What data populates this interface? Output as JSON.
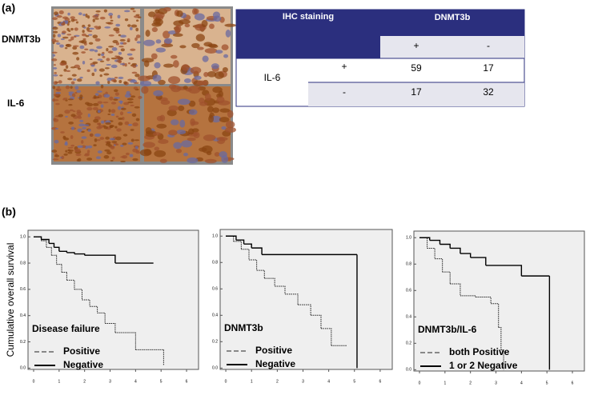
{
  "figure": {
    "panel_a": "(a)",
    "panel_b": "(b)",
    "image_labels": [
      "DNMT3b",
      "IL-6"
    ]
  },
  "table": {
    "corner": "IHC staining",
    "column_group": "DNMT3b",
    "columns": [
      "+",
      "-"
    ],
    "row_group": "IL-6",
    "rows": [
      [
        "+",
        "59",
        "17"
      ],
      [
        "-",
        "17",
        "32"
      ]
    ]
  },
  "chart_data": [
    {
      "type": "line",
      "ylabel": "Cumulative overall survival",
      "annotation": "Disease failure",
      "xlim": [
        -0.22,
        6.47
      ],
      "ylim": [
        -0.01,
        1.05
      ],
      "xticks": [
        0,
        1,
        2,
        3,
        4,
        5,
        6
      ],
      "yticks": [
        {
          "value": 0,
          "label": "0.0"
        },
        {
          "value": 0.2,
          "label": "0.2"
        },
        {
          "value": 0.4,
          "label": "0.4"
        },
        {
          "value": 0.6,
          "label": "0.6"
        },
        {
          "value": 0.8,
          "label": "0.8"
        },
        {
          "value": 1,
          "label": "1.0"
        }
      ],
      "series": [
        {
          "name": "Positive",
          "color": "#888888",
          "line_color": "#222222",
          "dash": true,
          "x": [
            0,
            0.3,
            0.5,
            0.7,
            0.9,
            1.1,
            1.3,
            1.6,
            1.9,
            2.2,
            2.5,
            2.8,
            3.2,
            3.6,
            4.0,
            5.1
          ],
          "values": [
            1,
            0.97,
            0.92,
            0.86,
            0.79,
            0.73,
            0.67,
            0.6,
            0.52,
            0.47,
            0.42,
            0.34,
            0.27,
            0.27,
            0.14,
            0.02
          ]
        },
        {
          "name": "Negative",
          "color": "#000000",
          "line_color": "#000000",
          "dash": false,
          "x": [
            0,
            0.3,
            0.6,
            0.8,
            1.0,
            1.3,
            1.6,
            2.0,
            3.2,
            4.7
          ],
          "values": [
            1,
            0.98,
            0.95,
            0.92,
            0.89,
            0.88,
            0.87,
            0.86,
            0.8,
            0.8
          ]
        }
      ]
    },
    {
      "type": "line",
      "annotation": "DNMT3b",
      "xlim": [
        -0.22,
        6.47
      ],
      "ylim": [
        -0.01,
        1.05
      ],
      "xticks": [
        0,
        1,
        2,
        3,
        4,
        5,
        6
      ],
      "yticks": [
        {
          "value": 0,
          "label": "0.0"
        },
        {
          "value": 0.2,
          "label": "0.2"
        },
        {
          "value": 0.4,
          "label": "0.4"
        },
        {
          "value": 0.6,
          "label": "0.6"
        },
        {
          "value": 0.8,
          "label": "0.8"
        },
        {
          "value": 1,
          "label": "1.0"
        }
      ],
      "series": [
        {
          "name": "Positive",
          "color": "#888888",
          "line_color": "#222222",
          "dash": true,
          "x": [
            0,
            0.3,
            0.6,
            0.9,
            1.2,
            1.5,
            1.9,
            2.3,
            2.8,
            3.3,
            3.7,
            4.1,
            4.7
          ],
          "values": [
            1,
            0.96,
            0.9,
            0.82,
            0.74,
            0.68,
            0.62,
            0.56,
            0.48,
            0.4,
            0.3,
            0.17,
            0.17
          ]
        },
        {
          "name": "Negative",
          "color": "#000000",
          "line_color": "#000000",
          "dash": false,
          "x": [
            0,
            0.4,
            0.7,
            1.0,
            1.4,
            5.1,
            5.1
          ],
          "values": [
            1,
            0.97,
            0.94,
            0.91,
            0.86,
            0.86,
            0
          ]
        }
      ]
    },
    {
      "type": "line",
      "annotation": "DNMT3b/IL-6",
      "xlim": [
        -0.22,
        6.47
      ],
      "ylim": [
        -0.01,
        1.05
      ],
      "xticks": [
        0,
        1,
        2,
        3,
        4,
        5,
        6
      ],
      "yticks": [
        {
          "value": 0,
          "label": "0.0"
        },
        {
          "value": 0.2,
          "label": "0.2"
        },
        {
          "value": 0.4,
          "label": "0.4"
        },
        {
          "value": 0.6,
          "label": "0.6"
        },
        {
          "value": 0.8,
          "label": "0.8"
        },
        {
          "value": 1,
          "label": "1.0"
        }
      ],
      "series": [
        {
          "name": "both Positive",
          "color": "#888888",
          "line_color": "#222222",
          "dash": true,
          "x": [
            0,
            0.3,
            0.6,
            0.9,
            1.2,
            1.6,
            2.2,
            2.8,
            3.1,
            3.2,
            3.3
          ],
          "values": [
            1,
            0.92,
            0.84,
            0.74,
            0.65,
            0.56,
            0.55,
            0.5,
            0.32,
            0.15,
            0
          ]
        },
        {
          "name": "1 or 2 Negative",
          "color": "#000000",
          "line_color": "#000000",
          "dash": false,
          "x": [
            0,
            0.4,
            0.8,
            1.2,
            1.6,
            2.0,
            2.6,
            4.0,
            5.1,
            5.1
          ],
          "values": [
            1,
            0.98,
            0.95,
            0.92,
            0.88,
            0.85,
            0.79,
            0.71,
            0.71,
            0
          ]
        }
      ]
    }
  ]
}
